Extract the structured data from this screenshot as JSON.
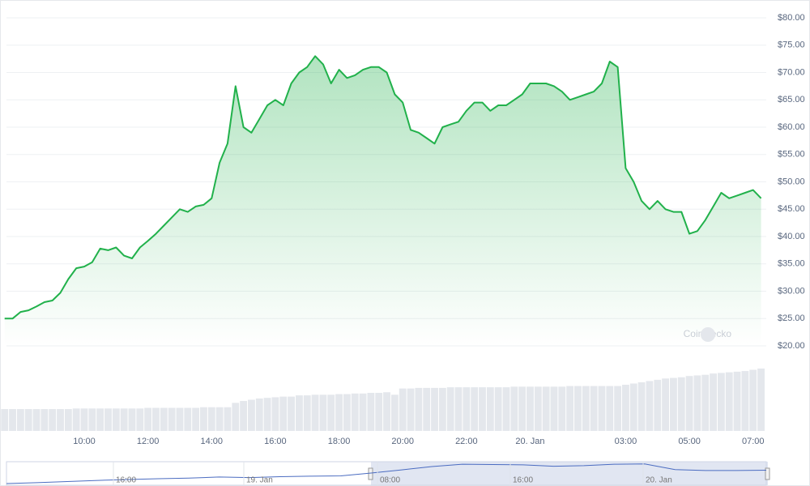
{
  "chart_data": {
    "type": "line",
    "color": "#21b14b",
    "categories": [
      null,
      null,
      null,
      null,
      null,
      null,
      null,
      null,
      null,
      null,
      "10:00",
      null,
      null,
      null,
      null,
      null,
      null,
      null,
      "12:00",
      null,
      null,
      null,
      null,
      null,
      null,
      null,
      "14:00",
      null,
      null,
      null,
      null,
      null,
      null,
      null,
      "16:00",
      null,
      null,
      null,
      null,
      null,
      null,
      null,
      "18:00",
      null,
      null,
      null,
      null,
      null,
      null,
      null,
      "20:00",
      null,
      null,
      null,
      null,
      null,
      null,
      null,
      "22:00",
      null,
      null,
      null,
      null,
      null,
      null,
      null,
      "20. Jan",
      null,
      null,
      null,
      null,
      null,
      null,
      null,
      null,
      null,
      null,
      null,
      "03:00",
      null,
      null,
      null,
      null,
      null,
      null,
      null,
      "05:00",
      null,
      null,
      null,
      null,
      null,
      null,
      null,
      "07:00",
      null
    ],
    "values": [
      25.0,
      25.0,
      26.2,
      26.5,
      27.2,
      28.0,
      28.3,
      29.7,
      32.2,
      34.2,
      34.5,
      35.3,
      37.8,
      37.5,
      38.0,
      36.5,
      36.0,
      38.0,
      39.2,
      40.5,
      42.0,
      43.5,
      45.0,
      44.5,
      45.5,
      45.8,
      47.0,
      53.5,
      57.0,
      67.5,
      60.0,
      59.0,
      61.5,
      64.0,
      65.0,
      64.0,
      68.0,
      70.0,
      71.0,
      73.0,
      71.5,
      68.0,
      70.5,
      69.0,
      69.5,
      70.5,
      71.0,
      71.0,
      70.0,
      66.0,
      64.5,
      59.5,
      59.0,
      58.0,
      57.0,
      60.0,
      60.5,
      61.0,
      63.0,
      64.5,
      64.5,
      63.0,
      64.0,
      64.0,
      65.0,
      66.0,
      68.0,
      68.0,
      68.0,
      67.5,
      66.5,
      65.0,
      65.5,
      66.0,
      66.5,
      68.0,
      72.0,
      71.0,
      52.5,
      50.0,
      46.5,
      45.0,
      46.5,
      45.0,
      44.5,
      44.5,
      40.5,
      41.0,
      43.0,
      45.5,
      48.0,
      47.0,
      47.5,
      48.0,
      48.5,
      47.0
    ],
    "ylim": [
      20,
      80
    ],
    "yticks": [
      {
        "value": 20,
        "label": "$20.00"
      },
      {
        "value": 25,
        "label": "$25.00"
      },
      {
        "value": 30,
        "label": "$30.00"
      },
      {
        "value": 35,
        "label": "$35.00"
      },
      {
        "value": 40,
        "label": "$40.00"
      },
      {
        "value": 45,
        "label": "$45.00"
      },
      {
        "value": 50,
        "label": "$50.00"
      },
      {
        "value": 55,
        "label": "$55.00"
      },
      {
        "value": 60,
        "label": "$60.00"
      },
      {
        "value": 65,
        "label": "$65.00"
      },
      {
        "value": 70,
        "label": "$70.00"
      },
      {
        "value": 75,
        "label": "$75.00"
      },
      {
        "value": 80,
        "label": "$80.00"
      }
    ],
    "grid": true,
    "volume_color": "#e4e7ec",
    "volumes": [
      35,
      35,
      35,
      35,
      35,
      35,
      35,
      35,
      35,
      36,
      36,
      36,
      36,
      36,
      36,
      36,
      36,
      36,
      37,
      37,
      37,
      37,
      37,
      37,
      37,
      38,
      38,
      38,
      38,
      45,
      48,
      50,
      52,
      53,
      54,
      55,
      55,
      57,
      57,
      58,
      58,
      58,
      59,
      59,
      60,
      60,
      61,
      61,
      62,
      58,
      68,
      68,
      69,
      69,
      69,
      69,
      70,
      70,
      70,
      70,
      70,
      70,
      70,
      70,
      71,
      71,
      71,
      71,
      71,
      71,
      71,
      72,
      72,
      72,
      72,
      72,
      72,
      72,
      74,
      76,
      78,
      80,
      82,
      84,
      85,
      86,
      88,
      89,
      90,
      92,
      93,
      94,
      95,
      96,
      98,
      100
    ],
    "volume_ylim": [
      0,
      100
    ],
    "watermark": "CoinGecko",
    "navigator": {
      "labels": [
        "16:00",
        "19. Jan",
        "08:00",
        "16:00",
        "20. Jan"
      ],
      "values": [
        3,
        6,
        10,
        14,
        17,
        20,
        22,
        26,
        24,
        27,
        29,
        30,
        40,
        51,
        63,
        71,
        70,
        69,
        64,
        66,
        71,
        72,
        52,
        49,
        49,
        50
      ],
      "ylim": [
        0,
        80
      ]
    }
  }
}
